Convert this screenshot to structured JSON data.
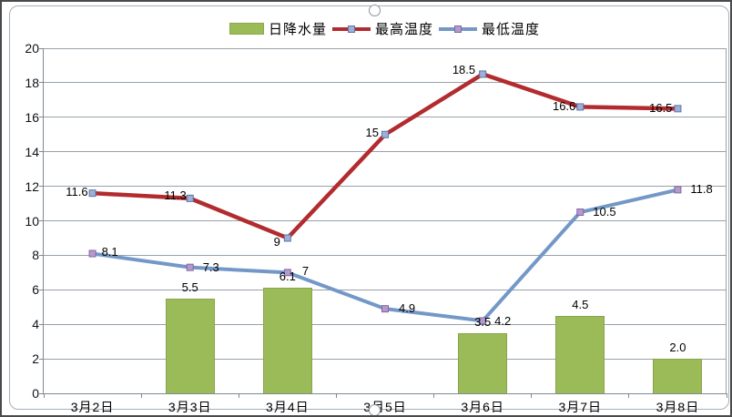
{
  "chart_data": {
    "type": "combo",
    "title": "",
    "xlabel": "",
    "ylabel": "",
    "categories": [
      "3月2日",
      "3月3日",
      "3月4日",
      "3月5日",
      "3月6日",
      "3月7日",
      "3月8日"
    ],
    "series": [
      {
        "name": "日降水量",
        "type": "bar",
        "color": "#9BBB59",
        "values": [
          null,
          5.5,
          6.1,
          null,
          3.5,
          4.5,
          2.0
        ],
        "data_labels": [
          "",
          "5.5",
          "6.1",
          "",
          "3.5",
          "4.5",
          "2.0"
        ]
      },
      {
        "name": "最高温度",
        "type": "line",
        "color": "#B22B2E",
        "marker_fill": "#9FB0D6",
        "marker_border": "#5A74A8",
        "values": [
          11.6,
          11.3,
          9,
          15,
          18.5,
          16.6,
          16.5
        ],
        "data_labels": [
          "11.6",
          "11.3",
          "9",
          "15",
          "18.5",
          "16.6",
          "16.5"
        ]
      },
      {
        "name": "最低温度",
        "type": "line",
        "color": "#7398C8",
        "marker_fill": "#B39BC8",
        "marker_border": "#8763A8",
        "values": [
          8.1,
          7.3,
          7,
          4.9,
          4.2,
          10.5,
          11.8
        ],
        "data_labels": [
          "8.1",
          "7.3",
          "7",
          "4.9",
          "4.2",
          "10.5",
          "11.8"
        ]
      }
    ],
    "ylim": [
      0,
      20
    ],
    "ytick_step": 2,
    "yticks": [
      "0",
      "2",
      "4",
      "6",
      "8",
      "10",
      "12",
      "14",
      "16",
      "18",
      "20"
    ],
    "grid": true,
    "legend_position": "top"
  },
  "colors": {
    "grid": "#98a2aa",
    "axis": "#7f8a92",
    "bar_fill": "#9BBB59",
    "bar_border": "#87a44c",
    "text": "#000000",
    "frame_border": "#a4b0ba",
    "background": "#ffffff"
  }
}
